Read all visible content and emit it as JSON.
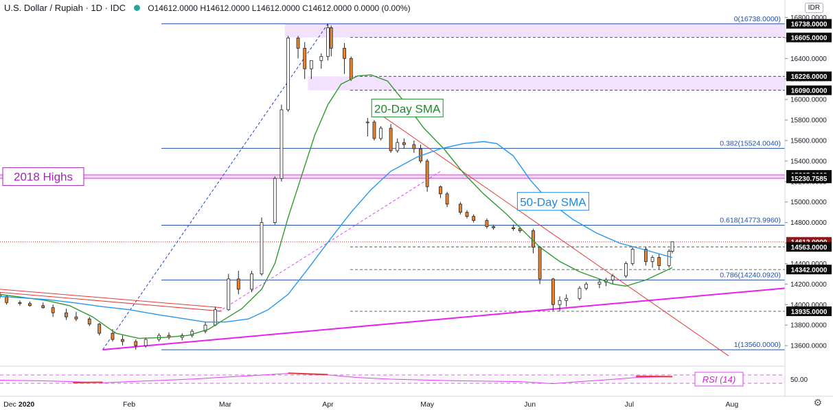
{
  "header": {
    "symbol": "U.S. Dollar / Rupiah · 1D · IDC",
    "ohlc": "O14612.0000  H14612.0000  L14612.0000  C14612.0000  0.0000 (0.00%)"
  },
  "currency_badge": "IDR",
  "chart_data": {
    "type": "candlestick",
    "y_axis": {
      "range": [
        13400,
        16850
      ],
      "ticks": [
        "13600.0000",
        "13800.0000",
        "14000.0000",
        "14200.0000",
        "14400.0000",
        "14600.0000",
        "14800.0000",
        "15000.0000",
        "15200.0000",
        "15400.0000",
        "15600.0000",
        "15800.0000",
        "16000.0000",
        "16200.0000",
        "16400.0000",
        "16600.0000",
        "16800.0000"
      ]
    },
    "x_axis": {
      "range": [
        "2019-12-24",
        "2020-08-17"
      ],
      "ticks": [
        {
          "date": "2019-12-27",
          "label": "Dec"
        },
        {
          "date": "2020-01-01",
          "label": "2020"
        },
        {
          "date": "2020-02-01",
          "label": "Feb"
        },
        {
          "date": "2020-03-01",
          "label": "Mar"
        },
        {
          "date": "2020-04-01",
          "label": "Apr"
        },
        {
          "date": "2020-05-01",
          "label": "May"
        },
        {
          "date": "2020-06-01",
          "label": "Jun"
        },
        {
          "date": "2020-07-01",
          "label": "Jul"
        },
        {
          "date": "2020-08-01",
          "label": "Aug"
        }
      ]
    },
    "price_boxes": [
      {
        "value": 16738,
        "label": "16738.0000"
      },
      {
        "value": 16605,
        "label": "16605.0000"
      },
      {
        "value": 16226,
        "label": "16226.0000"
      },
      {
        "value": 16090,
        "label": "16090.0000"
      },
      {
        "value": 15265,
        "label": "15265.0000"
      },
      {
        "value": 15230.7585,
        "label": "15230.7585"
      },
      {
        "value": 14612,
        "label": "14612.0000",
        "color": "#8b1a1a"
      },
      {
        "value": 14563,
        "label": "14563.0000"
      },
      {
        "value": 14342,
        "label": "14342.0000"
      },
      {
        "value": 13935,
        "label": "13935.0000"
      }
    ],
    "fib_levels": [
      {
        "value": 16738,
        "label": "0(16738.0000)"
      },
      {
        "value": 15524.004,
        "label": "0.382(15524.0040)"
      },
      {
        "value": 14773.996,
        "label": "0.618(14773.9960)"
      },
      {
        "value": 14240.092,
        "label": "0.786(14240.0920)"
      },
      {
        "value": 13560,
        "label": "1(13560.0000)"
      }
    ],
    "resistance_zones": [
      {
        "from": 16605,
        "to": 16738,
        "start": "2020-03-19"
      },
      {
        "from": 16090,
        "to": 16226,
        "start": "2020-03-26"
      }
    ],
    "highs_2018": {
      "label": "2018 Highs",
      "from": 15230.7585,
      "to": 15265,
      "color": "#9c27b0"
    },
    "annotations": [
      {
        "text": "20-Day SMA",
        "color": "#1b8a2a",
        "date": "2020-04-25",
        "value": 15910
      },
      {
        "text": "50-Day SMA",
        "color": "#1e88e5",
        "date": "2020-06-08",
        "value": 15000
      }
    ],
    "series": [
      {
        "name": "20-Day SMA",
        "color": "#2e9a2e",
        "points": [
          [
            "2019-12-24",
            14100
          ],
          [
            "2020-01-07",
            14040
          ],
          [
            "2020-01-14",
            13990
          ],
          [
            "2020-01-21",
            13880
          ],
          [
            "2020-01-28",
            13720
          ],
          [
            "2020-02-04",
            13670
          ],
          [
            "2020-02-12",
            13680
          ],
          [
            "2020-02-19",
            13700
          ],
          [
            "2020-02-25",
            13760
          ],
          [
            "2020-03-01",
            13860
          ],
          [
            "2020-03-06",
            13960
          ],
          [
            "2020-03-12",
            14150
          ],
          [
            "2020-03-16",
            14400
          ],
          [
            "2020-03-20",
            14850
          ],
          [
            "2020-03-24",
            15250
          ],
          [
            "2020-03-28",
            15650
          ],
          [
            "2020-04-01",
            15950
          ],
          [
            "2020-04-05",
            16150
          ],
          [
            "2020-04-10",
            16230
          ],
          [
            "2020-04-14",
            16240
          ],
          [
            "2020-04-19",
            16180
          ],
          [
            "2020-04-24",
            15980
          ],
          [
            "2020-04-30",
            15720
          ],
          [
            "2020-05-06",
            15520
          ],
          [
            "2020-05-12",
            15280
          ],
          [
            "2020-05-18",
            15080
          ],
          [
            "2020-05-25",
            14880
          ],
          [
            "2020-05-29",
            14750
          ],
          [
            "2020-06-04",
            14560
          ],
          [
            "2020-06-10",
            14420
          ],
          [
            "2020-06-16",
            14320
          ],
          [
            "2020-06-22",
            14250
          ],
          [
            "2020-06-26",
            14200
          ],
          [
            "2020-06-30",
            14180
          ],
          [
            "2020-07-06",
            14240
          ],
          [
            "2020-07-10",
            14300
          ],
          [
            "2020-07-14",
            14360
          ]
        ]
      },
      {
        "name": "50-Day SMA",
        "color": "#2196f3",
        "points": [
          [
            "2019-12-24",
            14080
          ],
          [
            "2020-01-07",
            14050
          ],
          [
            "2020-01-15",
            14020
          ],
          [
            "2020-01-24",
            13980
          ],
          [
            "2020-02-01",
            13950
          ],
          [
            "2020-02-10",
            13900
          ],
          [
            "2020-02-18",
            13860
          ],
          [
            "2020-02-24",
            13830
          ],
          [
            "2020-03-01",
            13830
          ],
          [
            "2020-03-08",
            13860
          ],
          [
            "2020-03-14",
            13950
          ],
          [
            "2020-03-20",
            14100
          ],
          [
            "2020-03-26",
            14350
          ],
          [
            "2020-04-02",
            14650
          ],
          [
            "2020-04-08",
            14900
          ],
          [
            "2020-04-14",
            15120
          ],
          [
            "2020-04-20",
            15300
          ],
          [
            "2020-04-28",
            15440
          ],
          [
            "2020-05-05",
            15520
          ],
          [
            "2020-05-12",
            15570
          ],
          [
            "2020-05-18",
            15590
          ],
          [
            "2020-05-22",
            15570
          ],
          [
            "2020-05-27",
            15450
          ],
          [
            "2020-06-01",
            15220
          ],
          [
            "2020-06-07",
            15000
          ],
          [
            "2020-06-14",
            14830
          ],
          [
            "2020-06-21",
            14700
          ],
          [
            "2020-06-28",
            14600
          ],
          [
            "2020-07-05",
            14540
          ],
          [
            "2020-07-14",
            14460
          ]
        ]
      }
    ],
    "trendlines": [
      {
        "color": "#1e3fd0",
        "style": "dashed",
        "points": [
          [
            "2020-01-24",
            13560
          ],
          [
            "2020-04-01",
            16738
          ]
        ]
      },
      {
        "color": "#e040fb",
        "style": "dashed",
        "points": [
          [
            "2020-02-28",
            13930
          ],
          [
            "2020-05-05",
            15300
          ]
        ]
      },
      {
        "color": "#e53935",
        "style": "solid",
        "points": [
          [
            "2019-12-24",
            14150
          ],
          [
            "2020-02-29",
            13970
          ]
        ]
      },
      {
        "color": "#e53935",
        "style": "solid",
        "points": [
          [
            "2019-12-24",
            14120
          ],
          [
            "2020-02-29",
            13935
          ]
        ]
      },
      {
        "color": "#e53935",
        "style": "solid",
        "points": [
          [
            "2020-04-17",
            15850
          ],
          [
            "2020-07-31",
            13500
          ]
        ]
      },
      {
        "color": "#e91ef0",
        "style": "solid",
        "points": [
          [
            "2020-01-24",
            13560
          ],
          [
            "2020-08-17",
            14160
          ]
        ]
      }
    ],
    "candles": [
      [
        "2019-12-24",
        14100,
        14120,
        14060,
        14080
      ],
      [
        "2019-12-26",
        14080,
        14090,
        14000,
        14020
      ],
      [
        "2019-12-30",
        14020,
        14040,
        13990,
        14010
      ],
      [
        "2020-01-02",
        14010,
        14030,
        13980,
        13990
      ],
      [
        "2020-01-06",
        13990,
        14020,
        13960,
        13970
      ],
      [
        "2020-01-09",
        13970,
        14000,
        13880,
        13920
      ],
      [
        "2020-01-13",
        13920,
        13960,
        13850,
        13880
      ],
      [
        "2020-01-16",
        13880,
        13930,
        13840,
        13860
      ],
      [
        "2020-01-20",
        13860,
        13880,
        13790,
        13810
      ],
      [
        "2020-01-23",
        13810,
        13820,
        13700,
        13720
      ],
      [
        "2020-01-27",
        13720,
        13760,
        13640,
        13660
      ],
      [
        "2020-01-30",
        13660,
        13700,
        13600,
        13640
      ],
      [
        "2020-02-03",
        13640,
        13660,
        13560,
        13600
      ],
      [
        "2020-02-06",
        13600,
        13680,
        13580,
        13660
      ],
      [
        "2020-02-10",
        13660,
        13720,
        13640,
        13700
      ],
      [
        "2020-02-13",
        13700,
        13730,
        13660,
        13680
      ],
      [
        "2020-02-17",
        13680,
        13720,
        13650,
        13700
      ],
      [
        "2020-02-20",
        13700,
        13760,
        13680,
        13740
      ],
      [
        "2020-02-24",
        13740,
        13830,
        13720,
        13800
      ],
      [
        "2020-02-27",
        13800,
        13980,
        13790,
        13950
      ],
      [
        "2020-03-02",
        13950,
        14300,
        13940,
        14250
      ],
      [
        "2020-03-05",
        14250,
        14330,
        14100,
        14150
      ],
      [
        "2020-03-09",
        14150,
        14330,
        14120,
        14300
      ],
      [
        "2020-03-12",
        14300,
        14850,
        14280,
        14800
      ],
      [
        "2020-03-16",
        14800,
        15250,
        14780,
        15230
      ],
      [
        "2020-03-18",
        15230,
        15950,
        15200,
        15900
      ],
      [
        "2020-03-20",
        15900,
        16620,
        15880,
        16600
      ],
      [
        "2020-03-23",
        16600,
        16620,
        16400,
        16500
      ],
      [
        "2020-03-25",
        16500,
        16560,
        16200,
        16300
      ],
      [
        "2020-03-27",
        16300,
        16380,
        16200,
        16380
      ],
      [
        "2020-03-30",
        16380,
        16450,
        16300,
        16420
      ],
      [
        "2020-04-01",
        16420,
        16738,
        16380,
        16700
      ],
      [
        "2020-04-02",
        16700,
        16720,
        16420,
        16500
      ],
      [
        "2020-04-06",
        16500,
        16550,
        16250,
        16400
      ],
      [
        "2020-04-08",
        16400,
        16420,
        16180,
        16200
      ],
      [
        "2020-04-13",
        15780,
        15820,
        15640,
        15780
      ],
      [
        "2020-04-15",
        15780,
        15800,
        15600,
        15620
      ],
      [
        "2020-04-17",
        15620,
        15740,
        15600,
        15720
      ],
      [
        "2020-04-20",
        15720,
        15760,
        15480,
        15500
      ],
      [
        "2020-04-22",
        15500,
        15620,
        15480,
        15580
      ],
      [
        "2020-04-24",
        15580,
        15620,
        15520,
        15560
      ],
      [
        "2020-04-27",
        15560,
        15600,
        15480,
        15520
      ],
      [
        "2020-04-29",
        15520,
        15560,
        15380,
        15400
      ],
      [
        "2020-05-01",
        15400,
        15420,
        15100,
        15150
      ],
      [
        "2020-05-05",
        15150,
        15160,
        15040,
        15080
      ],
      [
        "2020-05-07",
        15080,
        15100,
        14950,
        14980
      ],
      [
        "2020-05-11",
        14980,
        15000,
        14880,
        14900
      ],
      [
        "2020-05-13",
        14900,
        14920,
        14840,
        14860
      ],
      [
        "2020-05-15",
        14860,
        14880,
        14800,
        14820
      ],
      [
        "2020-05-19",
        14820,
        14840,
        14740,
        14760
      ],
      [
        "2020-05-21",
        14760,
        14780,
        14730,
        14750
      ],
      [
        "2020-05-27",
        14750,
        14780,
        14720,
        14740
      ],
      [
        "2020-05-29",
        14740,
        14760,
        14700,
        14720
      ],
      [
        "2020-06-02",
        14720,
        14740,
        14500,
        14560
      ],
      [
        "2020-06-04",
        14560,
        14570,
        14200,
        14250
      ],
      [
        "2020-06-08",
        14250,
        14260,
        13940,
        14000
      ],
      [
        "2020-06-10",
        14000,
        14080,
        13935,
        14040
      ],
      [
        "2020-06-12",
        14040,
        14100,
        13980,
        14060
      ],
      [
        "2020-06-16",
        14060,
        14180,
        14040,
        14160
      ],
      [
        "2020-06-18",
        14160,
        14220,
        14140,
        14200
      ],
      [
        "2020-06-22",
        14200,
        14250,
        14160,
        14220
      ],
      [
        "2020-06-24",
        14220,
        14260,
        14180,
        14240
      ],
      [
        "2020-06-26",
        14240,
        14300,
        14200,
        14280
      ],
      [
        "2020-06-30",
        14280,
        14420,
        14260,
        14400
      ],
      [
        "2020-07-02",
        14400,
        14560,
        14380,
        14540
      ],
      [
        "2020-07-06",
        14540,
        14560,
        14380,
        14420
      ],
      [
        "2020-07-08",
        14420,
        14480,
        14360,
        14460
      ],
      [
        "2020-07-10",
        14460,
        14500,
        14342,
        14380
      ],
      [
        "2020-07-13",
        14380,
        14540,
        14360,
        14520
      ],
      [
        "2020-07-14",
        14520,
        14612,
        14500,
        14612
      ]
    ],
    "rsi": {
      "label": "RSI (14)",
      "value_label": "50.00",
      "range": [
        0,
        100
      ],
      "levels": [
        70,
        30
      ],
      "points": [
        [
          "2019-12-24",
          45
        ],
        [
          "2020-01-05",
          42
        ],
        [
          "2020-01-15",
          38
        ],
        [
          "2020-01-24",
          32
        ],
        [
          "2020-02-01",
          38
        ],
        [
          "2020-02-12",
          45
        ],
        [
          "2020-02-22",
          52
        ],
        [
          "2020-03-01",
          60
        ],
        [
          "2020-03-10",
          68
        ],
        [
          "2020-03-20",
          78
        ],
        [
          "2020-03-31",
          72
        ],
        [
          "2020-04-10",
          58
        ],
        [
          "2020-04-20",
          50
        ],
        [
          "2020-04-30",
          46
        ],
        [
          "2020-05-10",
          42
        ],
        [
          "2020-05-20",
          40
        ],
        [
          "2020-05-29",
          38
        ],
        [
          "2020-06-08",
          28
        ],
        [
          "2020-06-16",
          38
        ],
        [
          "2020-06-25",
          48
        ],
        [
          "2020-07-03",
          58
        ],
        [
          "2020-07-14",
          62
        ]
      ],
      "markers": [
        {
          "points": [
            [
              "2020-01-15",
              33
            ],
            [
              "2020-01-24",
              35
            ]
          ]
        },
        {
          "points": [
            [
              "2020-03-20",
              79
            ],
            [
              "2020-04-01",
              72
            ]
          ]
        },
        {
          "points": [
            [
              "2020-07-03",
              64
            ],
            [
              "2020-07-14",
              62
            ]
          ]
        }
      ]
    }
  }
}
